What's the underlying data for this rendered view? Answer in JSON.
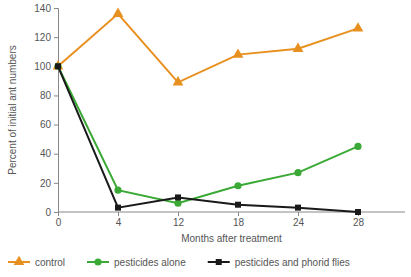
{
  "chart_data": {
    "type": "line",
    "x_label": "Months after treatment",
    "y_label": "Percent of initial ant numbers",
    "categories": [
      "0",
      "4",
      "12",
      "18",
      "24",
      "28"
    ],
    "series": [
      {
        "name": "control",
        "color": "#e8901f",
        "marker": "triangle",
        "values": [
          100,
          136,
          89,
          108,
          112,
          126
        ]
      },
      {
        "name": "pesticides alone",
        "color": "#3aa935",
        "marker": "circle",
        "values": [
          100,
          15,
          6,
          18,
          27,
          45
        ]
      },
      {
        "name": "pesticides and phorid flies",
        "color": "#1a1a1a",
        "marker": "square",
        "values": [
          100,
          3,
          10,
          5,
          3,
          0
        ]
      }
    ],
    "ylim": [
      0,
      140
    ],
    "yticks": [
      0,
      20,
      40,
      60,
      80,
      100,
      120,
      140
    ],
    "grid": false,
    "legend": "bottom"
  }
}
